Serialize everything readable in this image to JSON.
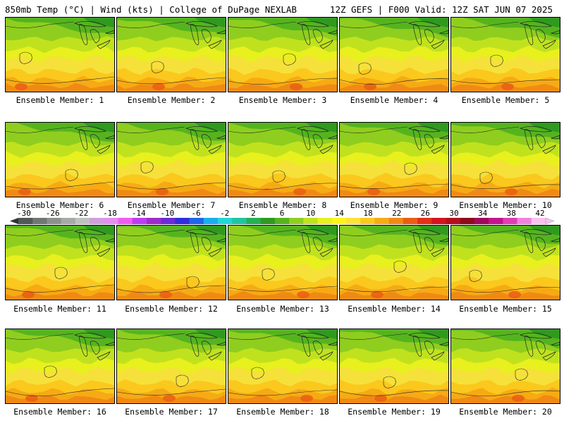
{
  "header": {
    "left_title": "850mb Temp (°C) | Wind (kts) | College of DuPage NEXLAB",
    "right_title": "12Z GEFS | F000 Valid: 12Z SAT JUN 07 2025"
  },
  "panels": [
    {
      "label": "Ensemble Member: 1"
    },
    {
      "label": "Ensemble Member: 2"
    },
    {
      "label": "Ensemble Member: 3"
    },
    {
      "label": "Ensemble Member: 4"
    },
    {
      "label": "Ensemble Member: 5"
    },
    {
      "label": "Ensemble Member: 6"
    },
    {
      "label": "Ensemble Member: 7"
    },
    {
      "label": "Ensemble Member: 8"
    },
    {
      "label": "Ensemble Member: 9"
    },
    {
      "label": "Ensemble Member: 10"
    },
    {
      "label": "Ensemble Member: 11"
    },
    {
      "label": "Ensemble Member: 12"
    },
    {
      "label": "Ensemble Member: 13"
    },
    {
      "label": "Ensemble Member: 14"
    },
    {
      "label": "Ensemble Member: 15"
    },
    {
      "label": "Ensemble Member: 16"
    },
    {
      "label": "Ensemble Member: 17"
    },
    {
      "label": "Ensemble Member: 18"
    },
    {
      "label": "Ensemble Member: 19"
    },
    {
      "label": "Ensemble Member: 20"
    }
  ],
  "colorbar": {
    "tick_labels": [
      "-30",
      "-26",
      "-22",
      "-18",
      "-14",
      "-10",
      "-6",
      "-2",
      "2",
      "6",
      "10",
      "14",
      "18",
      "22",
      "26",
      "30",
      "34",
      "38",
      "42"
    ],
    "colors": [
      "#4f5a55",
      "#6f7873",
      "#8b918d",
      "#a5aaa6",
      "#bec2bf",
      "#cfa0dd",
      "#e58ef0",
      "#f05cf0",
      "#bf3cf0",
      "#9d2cc8",
      "#6b2bd6",
      "#2f2ddc",
      "#1e66e8",
      "#19aef0",
      "#22d6d6",
      "#22c4a0",
      "#26b050",
      "#2f9a1e",
      "#55b41e",
      "#8fce1e",
      "#c0e21e",
      "#e8f01e",
      "#fff519",
      "#fde23a",
      "#fbc81e",
      "#f6aa14",
      "#f08a14",
      "#ea5d14",
      "#e43014",
      "#d3141e",
      "#b40f1e",
      "#8c0c1a",
      "#a00a5a",
      "#c3148c",
      "#e03cb4",
      "#f082dc",
      "#f8c2f0"
    ],
    "arrow_left_color": "#333333",
    "arrow_right_color": "#f8c2f0"
  },
  "field_colors": {
    "dark_green": "#2f9a1e",
    "green": "#55b41e",
    "light_green": "#8fce1e",
    "yellow_green": "#c0e21e",
    "lime_yellow": "#e8f01e",
    "yellow": "#f5e13a",
    "gold": "#fbc81e",
    "orange": "#f6aa14",
    "dark_orange": "#f08a14",
    "red_orange": "#ea5d14",
    "red": "#d3141e"
  }
}
